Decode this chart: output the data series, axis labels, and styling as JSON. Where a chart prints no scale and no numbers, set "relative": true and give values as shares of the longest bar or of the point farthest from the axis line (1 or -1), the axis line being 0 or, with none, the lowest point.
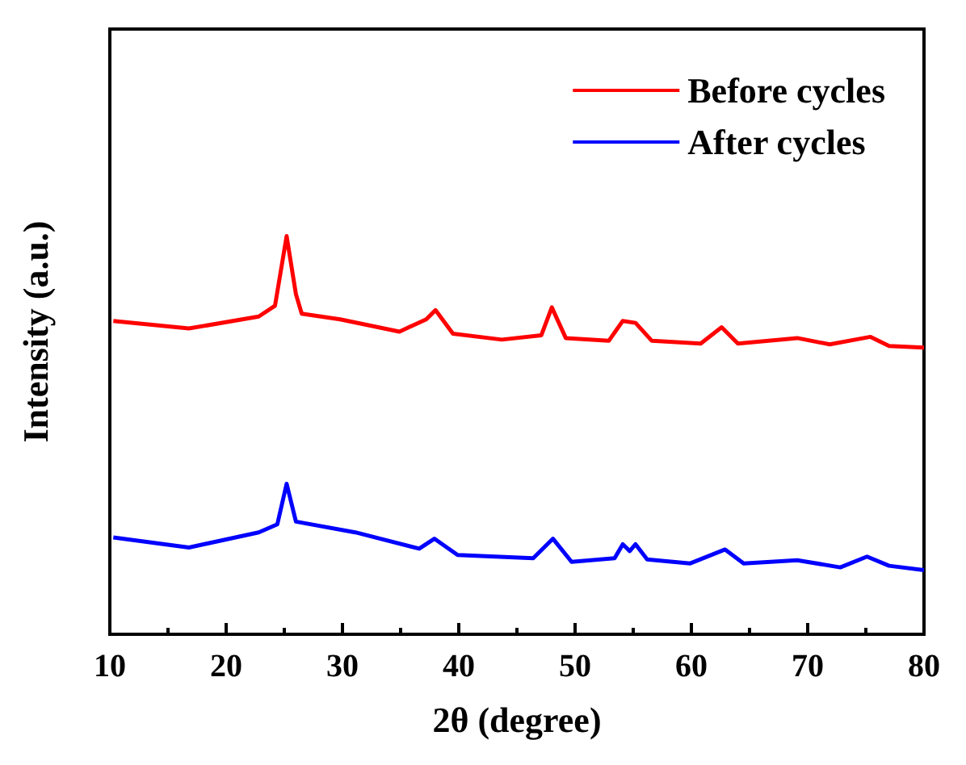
{
  "chart_data": {
    "type": "line",
    "xlabel": "2θ (degree)",
    "ylabel": "Intensity (a.u.)",
    "relative": true,
    "xlim": [
      10,
      80
    ],
    "xticks": [
      10,
      20,
      30,
      40,
      50,
      60,
      70,
      80
    ],
    "grid": false,
    "legend": "top right",
    "marker": "none",
    "line_style": "solid",
    "series": [
      {
        "name": "Before cycles",
        "color": "#ff0000",
        "x": [
          10.3,
          16.8,
          22.8,
          24.2,
          25.2,
          26.0,
          26.5,
          29.8,
          34.9,
          37.2,
          38.0,
          39.5,
          43.7,
          47.1,
          48.0,
          49.2,
          52.9,
          54.1,
          55.2,
          56.6,
          60.8,
          62.6,
          64.0,
          69.1,
          71.9,
          75.4,
          77.0,
          80.0
        ],
        "values": [
          0.787,
          0.768,
          0.798,
          0.825,
          1.0,
          0.854,
          0.805,
          0.791,
          0.76,
          0.791,
          0.814,
          0.755,
          0.74,
          0.751,
          0.821,
          0.744,
          0.737,
          0.787,
          0.782,
          0.737,
          0.73,
          0.771,
          0.73,
          0.744,
          0.728,
          0.747,
          0.724,
          0.72
        ]
      },
      {
        "name": "After cycles",
        "color": "#0000ff",
        "x": [
          10.3,
          16.8,
          22.8,
          24.4,
          25.2,
          26.0,
          31.1,
          36.6,
          37.9,
          39.9,
          46.4,
          48.1,
          49.7,
          53.4,
          54.1,
          54.7,
          55.2,
          56.2,
          59.9,
          62.9,
          64.5,
          69.1,
          72.8,
          75.1,
          77.0,
          80.0
        ],
        "values": [
          0.243,
          0.218,
          0.256,
          0.276,
          0.378,
          0.283,
          0.256,
          0.215,
          0.24,
          0.199,
          0.191,
          0.24,
          0.182,
          0.191,
          0.226,
          0.209,
          0.226,
          0.188,
          0.178,
          0.213,
          0.178,
          0.186,
          0.168,
          0.195,
          0.172,
          0.161
        ]
      }
    ]
  }
}
